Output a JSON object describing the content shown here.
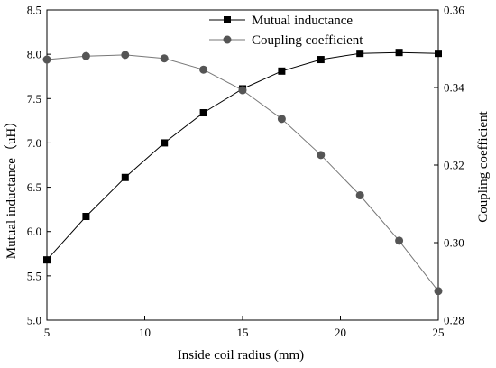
{
  "chart_data": {
    "type": "line",
    "xlabel": "Inside coil radius (mm)",
    "ylabel_left": "Mutual inductance（uH）",
    "ylabel_right": "Coupling coefficient",
    "xlim": [
      5,
      25
    ],
    "ylim_left": [
      5.0,
      8.5
    ],
    "ylim_right": [
      0.28,
      0.36
    ],
    "x_ticks": [
      "5",
      "10",
      "15",
      "20",
      "25"
    ],
    "y_ticks_left": [
      "5.0",
      "5.5",
      "6.0",
      "6.5",
      "7.0",
      "7.5",
      "8.0",
      "8.5"
    ],
    "y_ticks_right": [
      "0.28",
      "0.30",
      "0.32",
      "0.34",
      "0.36"
    ],
    "grid": false,
    "legend_position": "top-center",
    "x": [
      5,
      7,
      9,
      11,
      13,
      15,
      17,
      19,
      21,
      23,
      25
    ],
    "series": [
      {
        "name": "Mutual inductance",
        "axis": "left",
        "marker": "square",
        "color": "#000000",
        "values": [
          5.68,
          6.17,
          6.61,
          7.0,
          7.34,
          7.61,
          7.81,
          7.94,
          8.01,
          8.02,
          8.01
        ]
      },
      {
        "name": "Coupling coefficient",
        "axis": "right",
        "marker": "circle",
        "color": "#555555",
        "values": [
          0.3472,
          0.3481,
          0.3484,
          0.3475,
          0.3446,
          0.3393,
          0.3319,
          0.3226,
          0.3122,
          0.3005,
          0.2875
        ]
      }
    ]
  }
}
